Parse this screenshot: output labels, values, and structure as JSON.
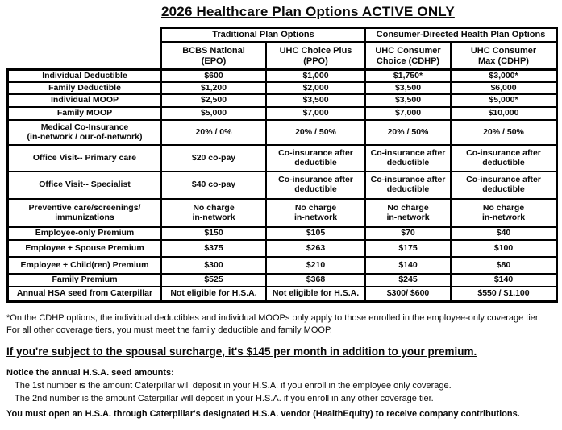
{
  "title": "2026 Healthcare Plan Options ACTIVE ONLY",
  "table": {
    "group_headers": [
      "Traditional Plan Options",
      "Consumer-Directed Health Plan Options"
    ],
    "plan_headers": [
      "BCBS National\n(EPO)",
      "UHC Choice Plus\n(PPO)",
      "UHC Consumer\nChoice (CDHP)",
      "UHC Consumer\nMax (CDHP)"
    ],
    "rows": [
      {
        "label": "Individual Deductible",
        "values": [
          "$600",
          "$1,000",
          "$1,750*",
          "$3,000*"
        ]
      },
      {
        "label": "Family Deductible",
        "values": [
          "$1,200",
          "$2,000",
          "$3,500",
          "$6,000"
        ]
      },
      {
        "label": "Individual MOOP",
        "values": [
          "$2,500",
          "$3,500",
          "$3,500",
          "$5,000*"
        ]
      },
      {
        "label": "Family MOOP",
        "values": [
          "$5,000",
          "$7,000",
          "$7,000",
          "$10,000"
        ]
      },
      {
        "label": "Medical Co-Insurance\n(in-network / our-of-network)",
        "values": [
          "20% / 0%",
          "20% / 50%",
          "20% / 50%",
          "20% / 50%"
        ]
      },
      {
        "label": "Office Visit-- Primary care",
        "values": [
          "$20 co-pay",
          "Co-insurance after\ndeductible",
          "Co-insurance after\ndeductible",
          "Co-insurance after\ndeductible"
        ]
      },
      {
        "label": "Office Visit-- Specialist",
        "values": [
          "$40 co-pay",
          "Co-insurance after\ndeductible",
          "Co-insurance after\ndeductible",
          "Co-insurance after\ndeductible"
        ]
      },
      {
        "label": "Preventive care/screenings/\nimmunizations",
        "values": [
          "No charge\nin-network",
          "No charge\nin-network",
          "No charge\nin-network",
          "No charge\nin-network"
        ]
      },
      {
        "label": "Employee-only Premium",
        "values": [
          "$150",
          "$105",
          "$70",
          "$40"
        ]
      },
      {
        "label": "Employee + Spouse Premium",
        "values": [
          "$375",
          "$263",
          "$175",
          "$100"
        ]
      },
      {
        "label": "Employee + Child(ren) Premium",
        "values": [
          "$300",
          "$210",
          "$140",
          "$80"
        ]
      },
      {
        "label": "Family Premium",
        "values": [
          "$525",
          "$368",
          "$245",
          "$140"
        ]
      },
      {
        "label": "Annual HSA seed from Caterpillar",
        "values": [
          "Not eligible for H.S.A.",
          "Not eligible for H.S.A.",
          "$300/ $600",
          "$550 / $1,100"
        ]
      }
    ]
  },
  "notes": {
    "cdhp_footnote": "*On the CDHP options, the individual deductibles and individual MOOPs only apply to those enrolled in the employee-only coverage tier. For all other coverage tiers, you must meet the family deductible and family MOOP.",
    "spousal_surcharge": "If you're subject to the spousal surcharge, it's $145 per month in addition to your premium.",
    "hsa_heading": "Notice the annual H.S.A. seed amounts:",
    "hsa_line1": "The 1st number is the amount Caterpillar will deposit in your H.S.A. if you enroll in the employee only coverage.",
    "hsa_line2": "The 2nd number is the amount Caterpillar will deposit in your H.S.A. if you enroll in any other coverage tier.",
    "hsa_vendor": "You must open an H.S.A. through Caterpillar's designated H.S.A. vendor (HealthEquity) to receive company contributions."
  }
}
